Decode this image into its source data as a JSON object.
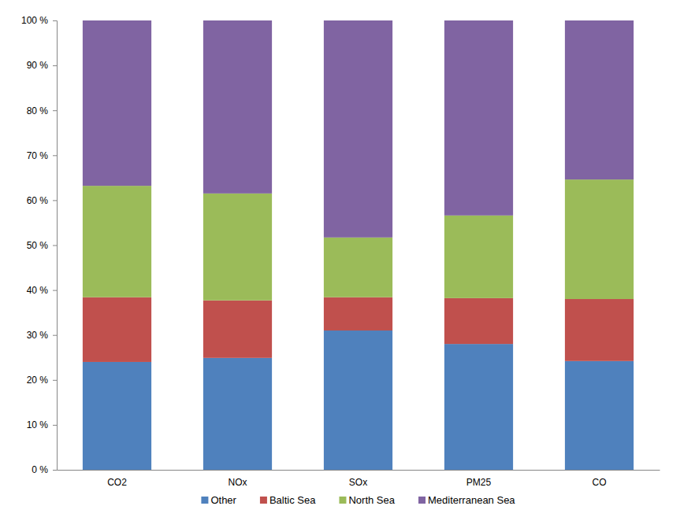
{
  "chart_data": {
    "type": "bar",
    "stacked": true,
    "categories": [
      "CO2",
      "NOx",
      "SOx",
      "PM25",
      "CO"
    ],
    "series": [
      {
        "name": "Other",
        "color": "#4f81bd",
        "values": [
          24.0,
          24.9,
          31.0,
          28.0,
          24.2
        ]
      },
      {
        "name": "Baltic Sea",
        "color": "#c0504d",
        "values": [
          14.4,
          12.8,
          7.4,
          10.2,
          13.8
        ]
      },
      {
        "name": "North Sea",
        "color": "#9bbb59",
        "values": [
          24.8,
          23.8,
          13.3,
          18.4,
          26.6
        ]
      },
      {
        "name": "Mediterranean Sea",
        "color": "#8064a2",
        "values": [
          36.8,
          38.5,
          48.3,
          43.4,
          35.4
        ]
      }
    ],
    "ylim": [
      0,
      100
    ],
    "yticks": [
      {
        "value": 0,
        "label": "0 %"
      },
      {
        "value": 10,
        "label": "10 %"
      },
      {
        "value": 20,
        "label": "20 %"
      },
      {
        "value": 30,
        "label": "30 %"
      },
      {
        "value": 40,
        "label": "40 %"
      },
      {
        "value": 50,
        "label": "50 %"
      },
      {
        "value": 60,
        "label": "60 %"
      },
      {
        "value": 70,
        "label": "70 %"
      },
      {
        "value": 80,
        "label": "80 %"
      },
      {
        "value": 90,
        "label": "90 %"
      },
      {
        "value": 100,
        "label": "100 %"
      }
    ],
    "grid": false,
    "legend": "bottom"
  }
}
